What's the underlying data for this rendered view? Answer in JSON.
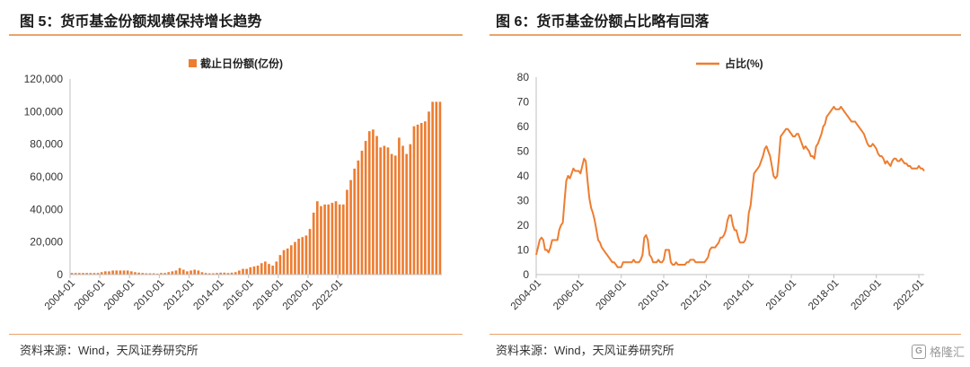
{
  "left_panel": {
    "title": "图 5：货币基金份额规模保持增长趋势",
    "source": "资料来源：Wind，天风证券研究所"
  },
  "right_panel": {
    "title": "图 6：货币基金份额占比略有回落",
    "source": "资料来源：Wind，天风证券研究所"
  },
  "watermark": {
    "icon": "gelonghui-logo-icon",
    "text": "格隆汇"
  },
  "colors": {
    "accent": "#ed7d31",
    "rule": "#e9a46a",
    "axis": "#bfbfbf"
  },
  "chart_data": [
    {
      "type": "bar",
      "legend": "截止日份额(亿份)",
      "legend_position": "top-center",
      "ylim": [
        0,
        120000
      ],
      "yticks": [
        "0",
        "20,000",
        "40,000",
        "60,000",
        "80,000",
        "100,000",
        "120,000"
      ],
      "xtick_labels": [
        "2004-01",
        "2006-01",
        "2008-01",
        "2010-01",
        "2012-01",
        "2014-01",
        "2016-01",
        "2018-01",
        "2020-01",
        "2022-01"
      ],
      "x_start": "2004-01",
      "x_step": "3 months",
      "grid": false,
      "values": [
        1000,
        1000,
        1000,
        1000,
        1000,
        1000,
        1000,
        1000,
        1500,
        2000,
        2000,
        2500,
        2500,
        2500,
        2500,
        2500,
        2000,
        1500,
        1200,
        1000,
        800,
        800,
        800,
        600,
        1000,
        1000,
        1500,
        2000,
        2500,
        4000,
        3000,
        2000,
        2500,
        3000,
        2500,
        1500,
        1000,
        800,
        800,
        1000,
        1200,
        1200,
        1000,
        1200,
        1500,
        2500,
        3500,
        3500,
        4500,
        5000,
        5500,
        7000,
        8000,
        6500,
        5500,
        8000,
        12000,
        15000,
        16000,
        18000,
        20000,
        22000,
        23000,
        24000,
        28000,
        38000,
        45000,
        42000,
        43000,
        43000,
        44000,
        45000,
        43000,
        43000,
        52000,
        58000,
        65000,
        70000,
        76000,
        82000,
        88000,
        89000,
        85000,
        78000,
        79000,
        78000,
        74000,
        73000,
        84000,
        79000,
        74000,
        80000,
        91000,
        92000,
        93000,
        94000,
        100000,
        106000,
        106000,
        106000
      ]
    },
    {
      "type": "line",
      "legend": "占比(%)",
      "legend_position": "top-center",
      "ylim": [
        0,
        80
      ],
      "yticks": [
        "0",
        "10",
        "20",
        "30",
        "40",
        "50",
        "60",
        "70",
        "80"
      ],
      "xtick_labels": [
        "2004-01",
        "2006-01",
        "2008-01",
        "2010-01",
        "2012-01",
        "2014-01",
        "2016-01",
        "2018-01",
        "2020-01",
        "2022-01"
      ],
      "x_start": "2004-01",
      "x_step": "1 month",
      "grid": false,
      "values": [
        8,
        11,
        14,
        15,
        14,
        10,
        10,
        9,
        11,
        14,
        14,
        14,
        14,
        18,
        20,
        21,
        30,
        38,
        40,
        39,
        41,
        43,
        42,
        42,
        42,
        41,
        44,
        47,
        46,
        38,
        31,
        27,
        25,
        22,
        18,
        14,
        13,
        11,
        10,
        9,
        8,
        7,
        6,
        5,
        5,
        4,
        3,
        3,
        3,
        5,
        5,
        5,
        5,
        5,
        5,
        6,
        5,
        5,
        5,
        6,
        8,
        15,
        16,
        14,
        8,
        7,
        5,
        5,
        5,
        6,
        5,
        5,
        6,
        10,
        10,
        10,
        5,
        4,
        4,
        5,
        4,
        4,
        4,
        4,
        4,
        5,
        5,
        6,
        6,
        6,
        5,
        5,
        5,
        5,
        5,
        5,
        6,
        7,
        10,
        11,
        11,
        11,
        12,
        13,
        15,
        15,
        16,
        18,
        22,
        24,
        24,
        20,
        18,
        18,
        15,
        13,
        13,
        13,
        14,
        17,
        25,
        28,
        35,
        41,
        42,
        43,
        44,
        46,
        48,
        51,
        52,
        50,
        48,
        44,
        40,
        39,
        40,
        47,
        56,
        57,
        58,
        59,
        59,
        58,
        57,
        56,
        56,
        57,
        57,
        55,
        53,
        51,
        52,
        51,
        50,
        48,
        48,
        47,
        52,
        53,
        55,
        57,
        60,
        61,
        64,
        65,
        66,
        67,
        68,
        67,
        67,
        67,
        68,
        67,
        66,
        65,
        64,
        63,
        62,
        62,
        62,
        61,
        60,
        59,
        58,
        57,
        55,
        53,
        52,
        52,
        53,
        52,
        51,
        49,
        48,
        48,
        47,
        45,
        46,
        45,
        44,
        46,
        47,
        47,
        46,
        46,
        47,
        46,
        45,
        45,
        44,
        44,
        43,
        43,
        43,
        43,
        44,
        43,
        43,
        42
      ]
    }
  ]
}
